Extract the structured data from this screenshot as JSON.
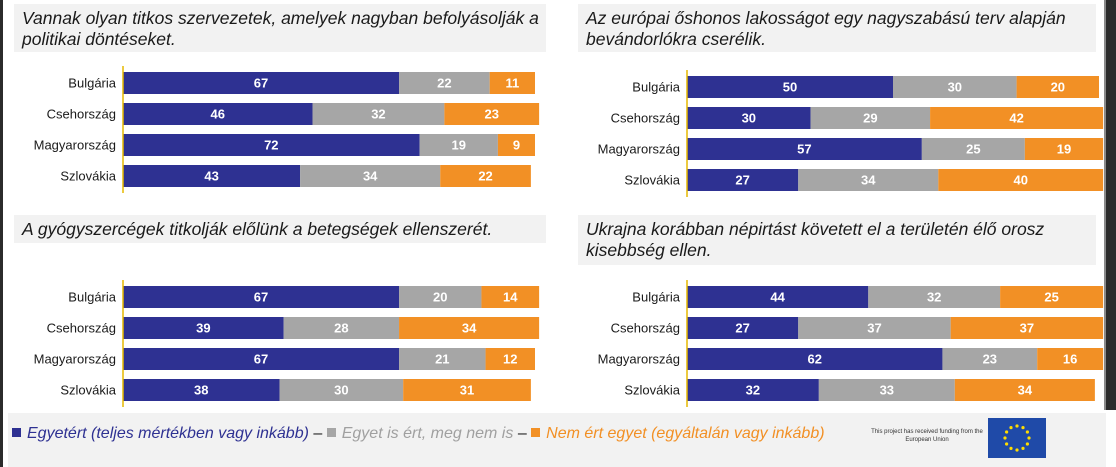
{
  "legend": {
    "agree": "Egyetért (teljes mértékben vagy inkább)",
    "neutral": "Egyet is ért, meg nem is",
    "disagree": "Nem ért egyet (egyáltalán vagy inkább)",
    "separator": "–"
  },
  "funding_text": "This project has received funding from the European Union",
  "colors": {
    "agree": "#2e3192",
    "neutral": "#a6a6a6",
    "disagree": "#f29025"
  },
  "chart_data": [
    {
      "type": "bar",
      "orientation": "horizontal",
      "stacked": true,
      "title": "Vannak olyan titkos szervezetek, amelyek nagyban befolyásolják a politikai döntéseket.",
      "categories": [
        "Bulgária",
        "Csehország",
        "Magyarország",
        "Szlovákia"
      ],
      "series": [
        {
          "key": "agree",
          "values": [
            67,
            46,
            72,
            43
          ]
        },
        {
          "key": "neutral",
          "values": [
            22,
            32,
            19,
            34
          ]
        },
        {
          "key": "disagree",
          "values": [
            11,
            23,
            9,
            22
          ]
        }
      ]
    },
    {
      "type": "bar",
      "orientation": "horizontal",
      "stacked": true,
      "title": "Az európai őshonos lakosságot egy nagyszabású terv alapján bevándorlókra cserélik.",
      "categories": [
        "Bulgária",
        "Csehország",
        "Magyarország",
        "Szlovákia"
      ],
      "series": [
        {
          "key": "agree",
          "values": [
            50,
            30,
            57,
            27
          ]
        },
        {
          "key": "neutral",
          "values": [
            30,
            29,
            25,
            34
          ]
        },
        {
          "key": "disagree",
          "values": [
            20,
            42,
            19,
            40
          ]
        }
      ]
    },
    {
      "type": "bar",
      "orientation": "horizontal",
      "stacked": true,
      "title": "A gyógyszercégek titkolják előlünk a betegségek ellenszerét.",
      "categories": [
        "Bulgária",
        "Csehország",
        "Magyarország",
        "Szlovákia"
      ],
      "series": [
        {
          "key": "agree",
          "values": [
            67,
            39,
            67,
            38
          ]
        },
        {
          "key": "neutral",
          "values": [
            20,
            28,
            21,
            30
          ]
        },
        {
          "key": "disagree",
          "values": [
            14,
            34,
            12,
            31
          ]
        }
      ]
    },
    {
      "type": "bar",
      "orientation": "horizontal",
      "stacked": true,
      "title": "Ukrajna korábban népirtást követett el a területén élő orosz kisebbség ellen.",
      "categories": [
        "Bulgária",
        "Csehország",
        "Magyarország",
        "Szlovákia"
      ],
      "series": [
        {
          "key": "agree",
          "values": [
            44,
            27,
            62,
            32
          ]
        },
        {
          "key": "neutral",
          "values": [
            32,
            37,
            23,
            33
          ]
        },
        {
          "key": "disagree",
          "values": [
            25,
            37,
            16,
            34
          ]
        }
      ]
    }
  ]
}
